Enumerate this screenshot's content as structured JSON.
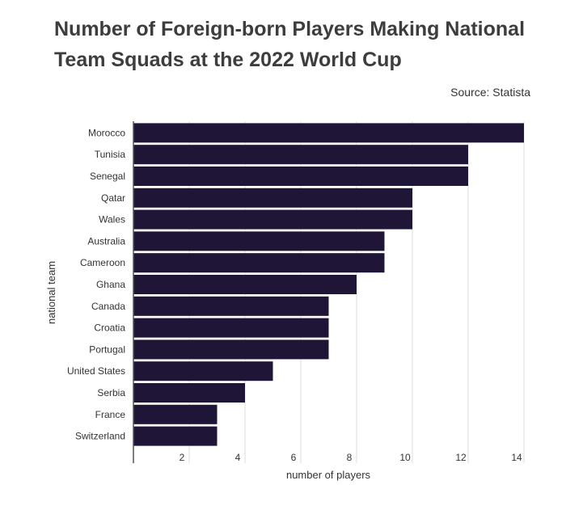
{
  "chart_data": {
    "type": "bar",
    "orientation": "horizontal",
    "title": "Number of Foreign-born Players Making National Team Squads at the 2022 World Cup",
    "source": "Source: Statista",
    "xlabel": "number of players",
    "ylabel": "national team",
    "categories": [
      "Morocco",
      "Tunisia",
      "Senegal",
      "Qatar",
      "Wales",
      "Australia",
      "Cameroon",
      "Ghana",
      "Canada",
      "Croatia",
      "Portugal",
      "United States",
      "Serbia",
      "France",
      "Switzerland"
    ],
    "values": [
      14,
      12,
      12,
      10,
      10,
      9,
      9,
      8,
      7,
      7,
      7,
      5,
      4,
      3,
      3
    ],
    "xticks": [
      "2",
      "4",
      "6",
      "8",
      "10",
      "12",
      "14"
    ],
    "xlim": [
      0,
      14
    ],
    "grid": true,
    "bar_color": "#1e1537"
  }
}
